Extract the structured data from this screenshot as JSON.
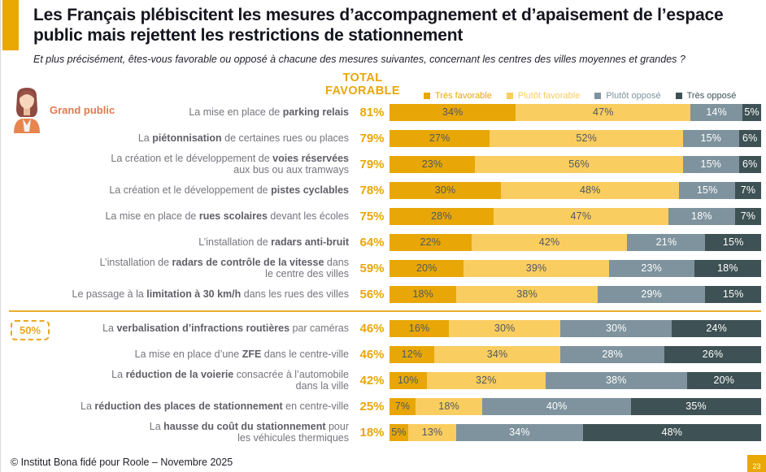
{
  "header": {
    "title": "Les Français plébiscitent les mesures d’accompagnement et d’apaisement de l’espace public mais rejettent les restrictions de stationnement",
    "subtitle": "Et plus précisément, êtes-vous  favorable ou opposé à chacune des mesures suivantes, concernant les centres des villes moyennes et grandes ?"
  },
  "footer": {
    "credit": "© Institut Bona fidé pour Roole – Novembre 2025",
    "page_number": "23"
  },
  "chart_data": {
    "type": "bar",
    "stacked": true,
    "orientation": "horizontal",
    "unit": "%",
    "audience": "Grand public",
    "total_header": {
      "line1": "TOTAL",
      "line2": "FAVORABLE"
    },
    "legend_position": "top-right",
    "xlim": [
      0,
      100
    ],
    "series": [
      {
        "name": "Très favorable",
        "color": "#E8A707",
        "label_color": "#4D5961"
      },
      {
        "name": "Plutôt favorable",
        "color": "#FACD60",
        "label_color": "#4D5961"
      },
      {
        "name": "Plutôt opposé",
        "color": "#7E939D",
        "label_color": "#FFFFFF"
      },
      {
        "name": "Très opposé",
        "color": "#3E5154",
        "label_color": "#FFFFFF"
      }
    ],
    "majority_threshold": {
      "label": "50%",
      "after_row": 8
    },
    "rows": [
      {
        "label": [
          {
            "t": "La mise en place de "
          },
          {
            "t": "parking relais",
            "b": true
          }
        ],
        "total": 81,
        "values": [
          34,
          47,
          14,
          5
        ]
      },
      {
        "label": [
          {
            "t": "La "
          },
          {
            "t": "piétonnisation",
            "b": true
          },
          {
            "t": " de certaines rues ou places"
          }
        ],
        "total": 79,
        "values": [
          27,
          52,
          15,
          6
        ]
      },
      {
        "label": [
          {
            "t": "La création et le développement de "
          },
          {
            "t": "voies réservées",
            "b": true
          },
          {
            "nl": true
          },
          {
            "t": "aux bus ou aux tramways"
          }
        ],
        "total": 79,
        "values": [
          23,
          56,
          15,
          6
        ]
      },
      {
        "label": [
          {
            "t": "La création et le développement de "
          },
          {
            "t": "pistes cyclables",
            "b": true
          }
        ],
        "total": 78,
        "values": [
          30,
          48,
          15,
          7
        ]
      },
      {
        "label": [
          {
            "t": "La mise en place de "
          },
          {
            "t": "rues scolaires",
            "b": true
          },
          {
            "t": " devant les écoles"
          }
        ],
        "total": 75,
        "values": [
          28,
          47,
          18,
          7
        ]
      },
      {
        "label": [
          {
            "t": "L’installation de "
          },
          {
            "t": "radars anti-bruit",
            "b": true
          }
        ],
        "total": 64,
        "values": [
          22,
          42,
          21,
          15
        ]
      },
      {
        "label": [
          {
            "t": "L’installation de "
          },
          {
            "t": "radars de contrôle de la vitesse",
            "b": true
          },
          {
            "t": " dans"
          },
          {
            "nl": true
          },
          {
            "t": "le centre des villes"
          }
        ],
        "total": 59,
        "values": [
          20,
          39,
          23,
          18
        ]
      },
      {
        "label": [
          {
            "t": "Le passage à la "
          },
          {
            "t": "limitation à 30 km/h",
            "b": true
          },
          {
            "t": " dans les rues des villes"
          }
        ],
        "total": 56,
        "values": [
          18,
          38,
          29,
          15
        ]
      },
      {
        "label": [
          {
            "t": "La "
          },
          {
            "t": "verbalisation d’infractions routières",
            "b": true
          },
          {
            "t": " par caméras"
          }
        ],
        "total": 46,
        "values": [
          16,
          30,
          30,
          24
        ]
      },
      {
        "label": [
          {
            "t": "La mise en place d’une "
          },
          {
            "t": "ZFE",
            "b": true
          },
          {
            "t": " dans le centre-ville"
          }
        ],
        "total": 46,
        "values": [
          12,
          34,
          28,
          26
        ]
      },
      {
        "label": [
          {
            "t": "La "
          },
          {
            "t": "réduction de la voierie",
            "b": true
          },
          {
            "t": " consacrée à l’automobile"
          },
          {
            "nl": true
          },
          {
            "t": "dans la ville"
          }
        ],
        "total": 42,
        "values": [
          10,
          32,
          38,
          20
        ]
      },
      {
        "label": [
          {
            "t": "La "
          },
          {
            "t": "réduction des places de stationnement",
            "b": true
          },
          {
            "t": " en centre-ville"
          }
        ],
        "total": 25,
        "values": [
          7,
          18,
          40,
          35
        ]
      },
      {
        "label": [
          {
            "t": "La "
          },
          {
            "t": "hausse du coût du stationnement",
            "b": true
          },
          {
            "t": " pour"
          },
          {
            "nl": true
          },
          {
            "t": "les véhicules thermiques"
          }
        ],
        "total": 18,
        "values": [
          5,
          13,
          34,
          48
        ]
      }
    ]
  }
}
